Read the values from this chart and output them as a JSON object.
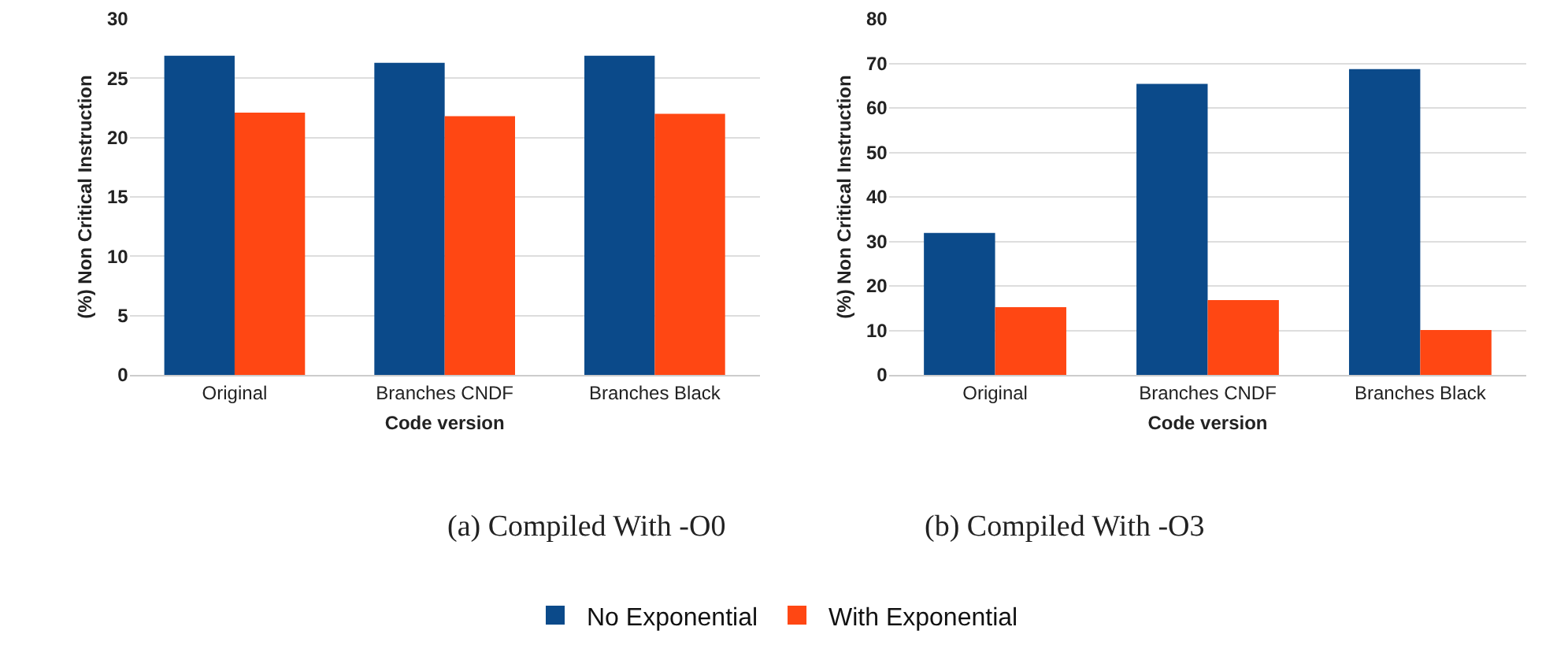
{
  "chart_data": [
    {
      "type": "bar",
      "title": "(a) Compiled With -O0",
      "xlabel": "Code version",
      "ylabel": "(%) Non Critical Instruction",
      "categories": [
        "Original",
        "Branches CNDF",
        "Branches Black"
      ],
      "series": [
        {
          "name": "No Exponential",
          "color": "#0b4a8a",
          "values": [
            26.9,
            26.3,
            26.9
          ]
        },
        {
          "name": "With Exponential",
          "color": "#ff4713",
          "values": [
            22.1,
            21.8,
            22.0
          ]
        }
      ],
      "ylim": [
        0,
        30
      ],
      "yticks": [
        0,
        5,
        10,
        15,
        20,
        25,
        30
      ],
      "grid": "y",
      "legend": "bottom"
    },
    {
      "type": "bar",
      "title": "(b) Compiled With -O3",
      "xlabel": "Code version",
      "ylabel": "(%) Non Critical Instruction",
      "categories": [
        "Original",
        "Branches CNDF",
        "Branches Black"
      ],
      "series": [
        {
          "name": "No Exponential",
          "color": "#0b4a8a",
          "values": [
            31.9,
            65.4,
            68.7
          ]
        },
        {
          "name": "With Exponential",
          "color": "#ff4713",
          "values": [
            15.2,
            16.8,
            10.1
          ]
        }
      ],
      "ylim": [
        0,
        80
      ],
      "yticks": [
        0,
        10,
        20,
        30,
        40,
        50,
        60,
        70,
        80
      ],
      "grid": "y",
      "legend": "bottom"
    }
  ]
}
